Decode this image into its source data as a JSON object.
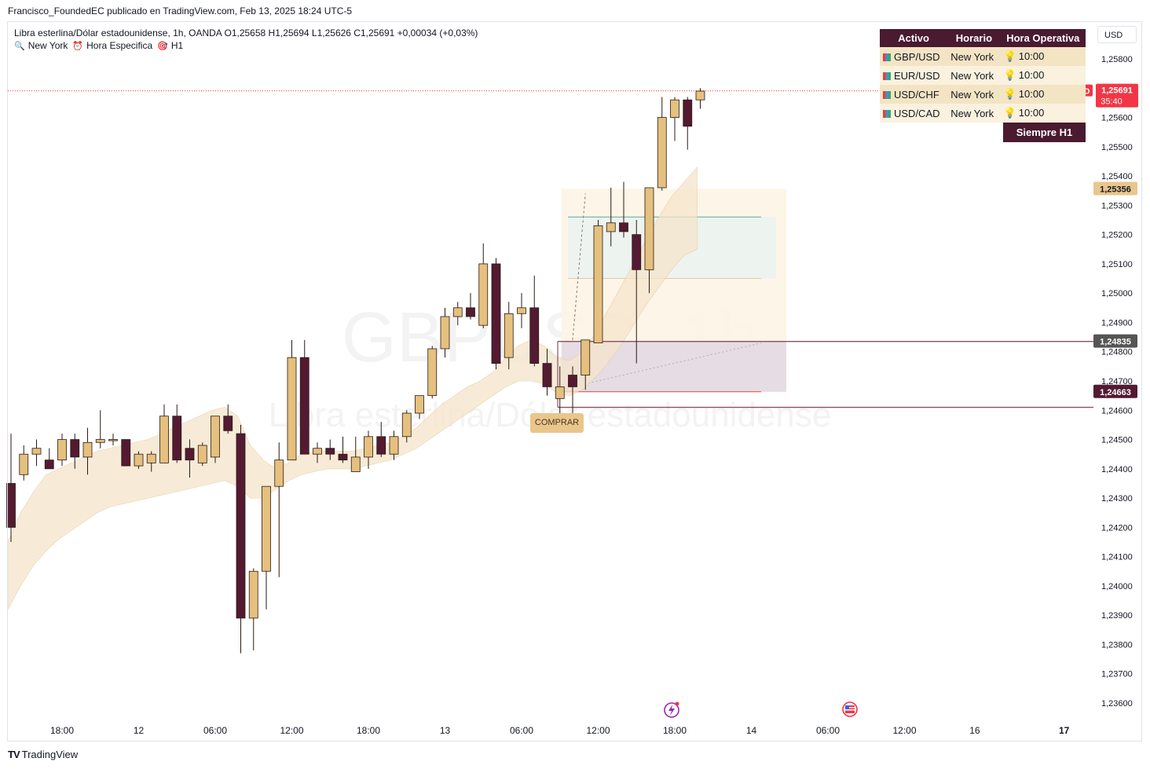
{
  "header": "Francisco_FoundedEC publicado en TradingView.com, Feb 13, 2025 18:24 UTC-5",
  "legend": {
    "line1": "Libra esterlina/Dólar estadounidense, 1h, OANDA  O1,25658  H1,25694  L1,25626  C1,25691  +0,00034 (+0,03%)",
    "items": [
      {
        "icon": "magnifier-icon",
        "glyph": "🔍",
        "label": "New York"
      },
      {
        "icon": "alarm-clock-icon",
        "glyph": "⏰",
        "label": "Hora Especifica"
      },
      {
        "icon": "target-icon",
        "glyph": "🎯",
        "label": "H1"
      }
    ]
  },
  "currency": "USD",
  "watermark": {
    "symbol": "GBPUSD, 1h",
    "name": "Libra esterlina/Dólar estadounidense"
  },
  "table": {
    "headers": [
      "Activo",
      "Horario",
      "Hora Operativa"
    ],
    "rows": [
      {
        "asset": "GBP/USD",
        "schedule": "New York",
        "time": "10:00"
      },
      {
        "asset": "EUR/USD",
        "schedule": "New York",
        "time": "10:00"
      },
      {
        "asset": "USD/CHF",
        "schedule": "New York",
        "time": "10:00"
      },
      {
        "asset": "USD/CAD",
        "schedule": "New York",
        "time": "10:00"
      }
    ],
    "footer": "Siempre H1"
  },
  "signal_label": "COMPRAR",
  "brand": "TradingView",
  "colors": {
    "bull": "#e5c07f",
    "bear": "#531a32",
    "outline": "#2a1a12",
    "band": "#f5e5cc",
    "price_tag": "#f23645",
    "accent_dark": "#4a1a30"
  },
  "chart_data": {
    "type": "candlestick",
    "symbol": "GBPUSD",
    "timeframe": "1h",
    "ylim": [
      1.2355,
      1.259
    ],
    "yticks": [
      1.258,
      1.257,
      1.256,
      1.255,
      1.254,
      1.253,
      1.252,
      1.251,
      1.25,
      1.249,
      1.248,
      1.247,
      1.246,
      1.245,
      1.244,
      1.243,
      1.242,
      1.241,
      1.24,
      1.239,
      1.238,
      1.237,
      1.236
    ],
    "ytick_labels": [
      "1,25800",
      "1,25700",
      "1,25600",
      "1,25500",
      "1,25400",
      "1,25300",
      "1,25200",
      "1,25100",
      "1,25000",
      "1,24900",
      "1,24800",
      "1,24700",
      "1,24600",
      "1,24500",
      "1,24400",
      "1,24300",
      "1,24200",
      "1,24100",
      "1,24000",
      "1,23900",
      "1,23800",
      "1,23700",
      "1,23600"
    ],
    "x_labels": [
      "18:00",
      "12",
      "06:00",
      "12:00",
      "18:00",
      "13",
      "06:00",
      "12:00",
      "18:00",
      "14",
      "06:00",
      "12:00",
      "16",
      "17"
    ],
    "x_label_bars": [
      4,
      10,
      16,
      22,
      28,
      34,
      40,
      46,
      52,
      58,
      64,
      70,
      75.5,
      82.5
    ],
    "candles": [
      [
        1.2435,
        1.2452,
        1.2415,
        1.242
      ],
      [
        1.2438,
        1.2448,
        1.2436,
        1.2445
      ],
      [
        1.2445,
        1.245,
        1.2441,
        1.2447
      ],
      [
        1.2443,
        1.2447,
        1.244,
        1.244
      ],
      [
        1.2443,
        1.2452,
        1.2441,
        1.245
      ],
      [
        1.245,
        1.2452,
        1.244,
        1.2444
      ],
      [
        1.2444,
        1.2454,
        1.2438,
        1.2449
      ],
      [
        1.2449,
        1.246,
        1.2447,
        1.245
      ],
      [
        1.245,
        1.2452,
        1.2448,
        1.245
      ],
      [
        1.245,
        1.245,
        1.2441,
        1.2441
      ],
      [
        1.2441,
        1.2446,
        1.244,
        1.2445
      ],
      [
        1.2442,
        1.2446,
        1.2439,
        1.2445
      ],
      [
        1.2442,
        1.2462,
        1.2442,
        1.2458
      ],
      [
        1.2458,
        1.2462,
        1.2442,
        1.2443
      ],
      [
        1.2447,
        1.245,
        1.2437,
        1.2443
      ],
      [
        1.2442,
        1.2449,
        1.2441,
        1.2448
      ],
      [
        1.2444,
        1.2458,
        1.2442,
        1.2458
      ],
      [
        1.2458,
        1.2462,
        1.2452,
        1.2453
      ],
      [
        1.2452,
        1.2455,
        1.2377,
        1.2389
      ],
      [
        1.2389,
        1.2406,
        1.2378,
        1.2405
      ],
      [
        1.2405,
        1.2434,
        1.2392,
        1.2434
      ],
      [
        1.2434,
        1.2449,
        1.2403,
        1.2443
      ],
      [
        1.2443,
        1.2484,
        1.2443,
        1.2478
      ],
      [
        1.2478,
        1.2484,
        1.2445,
        1.2445
      ],
      [
        1.2445,
        1.2449,
        1.2442,
        1.2447
      ],
      [
        1.2447,
        1.245,
        1.2443,
        1.2445
      ],
      [
        1.2445,
        1.2451,
        1.2442,
        1.2443
      ],
      [
        1.2439,
        1.2451,
        1.2439,
        1.2444
      ],
      [
        1.2444,
        1.2453,
        1.244,
        1.2451
      ],
      [
        1.2451,
        1.2456,
        1.2444,
        1.2445
      ],
      [
        1.2445,
        1.2453,
        1.2443,
        1.2451
      ],
      [
        1.2451,
        1.246,
        1.2449,
        1.2459
      ],
      [
        1.2459,
        1.2465,
        1.2457,
        1.2465
      ],
      [
        1.2465,
        1.2482,
        1.2464,
        1.2481
      ],
      [
        1.2481,
        1.2495,
        1.2478,
        1.2492
      ],
      [
        1.2492,
        1.2497,
        1.2489,
        1.2495
      ],
      [
        1.2495,
        1.25,
        1.2491,
        1.2492
      ],
      [
        1.2489,
        1.2517,
        1.2488,
        1.251
      ],
      [
        1.251,
        1.2512,
        1.2474,
        1.2476
      ],
      [
        1.2478,
        1.2497,
        1.2474,
        1.2493
      ],
      [
        1.2493,
        1.25,
        1.2488,
        1.2495
      ],
      [
        1.2495,
        1.2506,
        1.2475,
        1.2476
      ],
      [
        1.2476,
        1.2481,
        1.2465,
        1.2468
      ],
      [
        1.2464,
        1.2475,
        1.2454,
        1.2468
      ],
      [
        1.2472,
        1.2475,
        1.2455,
        1.2468
      ],
      [
        1.2472,
        1.2484,
        1.2467,
        1.2484
      ],
      [
        1.2483,
        1.2525,
        1.2483,
        1.2523
      ],
      [
        1.2521,
        1.2536,
        1.2516,
        1.2524
      ],
      [
        1.2524,
        1.2538,
        1.2519,
        1.2521
      ],
      [
        1.252,
        1.2525,
        1.2476,
        1.2508
      ],
      [
        1.2508,
        1.2536,
        1.25,
        1.2536
      ],
      [
        1.2536,
        1.2567,
        1.2535,
        1.256
      ],
      [
        1.256,
        1.2567,
        1.2552,
        1.2566
      ],
      [
        1.2566,
        1.2567,
        1.2549,
        1.2557
      ],
      [
        1.2566,
        1.257,
        1.2563,
        1.2569
      ]
    ],
    "band": {
      "upper": [
        1.2415,
        1.2425,
        1.2432,
        1.2438,
        1.244,
        1.2442,
        1.2444,
        1.2446,
        1.2447,
        1.2448,
        1.2449,
        1.245,
        1.2452,
        1.2454,
        1.2456,
        1.2458,
        1.246,
        1.2461,
        1.2458,
        1.2448,
        1.2443,
        1.244,
        1.2442,
        1.2445,
        1.2446,
        1.2446,
        1.2446,
        1.2446,
        1.2447,
        1.2448,
        1.2449,
        1.2451,
        1.2454,
        1.2458,
        1.2462,
        1.2465,
        1.2468,
        1.247,
        1.2473,
        1.2478,
        1.2482,
        1.2484,
        1.2482,
        1.2478,
        1.2477,
        1.248,
        1.2486,
        1.2494,
        1.2502,
        1.251,
        1.2518,
        1.2526,
        1.2533,
        1.2538,
        1.2543
      ],
      "lower": [
        1.2392,
        1.24,
        1.2407,
        1.2412,
        1.2416,
        1.2419,
        1.2422,
        1.2425,
        1.2427,
        1.2428,
        1.2429,
        1.243,
        1.2431,
        1.2432,
        1.2433,
        1.2434,
        1.2435,
        1.2436,
        1.2434,
        1.243,
        1.243,
        1.2433,
        1.2436,
        1.2438,
        1.2439,
        1.244,
        1.244,
        1.244,
        1.2441,
        1.2442,
        1.2443,
        1.2445,
        1.2447,
        1.245,
        1.2453,
        1.2456,
        1.2459,
        1.2462,
        1.2465,
        1.2468,
        1.247,
        1.247,
        1.2469,
        1.2466,
        1.2465,
        1.2467,
        1.2471,
        1.2476,
        1.2482,
        1.2489,
        1.2496,
        1.2502,
        1.2508,
        1.2513,
        1.2515
      ]
    },
    "last_price": 1.25691,
    "last_price_label": "1,25691",
    "countdown": "35:40",
    "symbol_tag": "GBPUSD",
    "levels": [
      {
        "price": 1.25356,
        "label": "1,25356"
      },
      {
        "price": 1.24835,
        "label": "1,24835"
      },
      {
        "price": 1.24663,
        "label": "1,24663"
      }
    ],
    "signal": {
      "bar": 43,
      "price": 1.2461,
      "label": "COMPRAR"
    }
  }
}
